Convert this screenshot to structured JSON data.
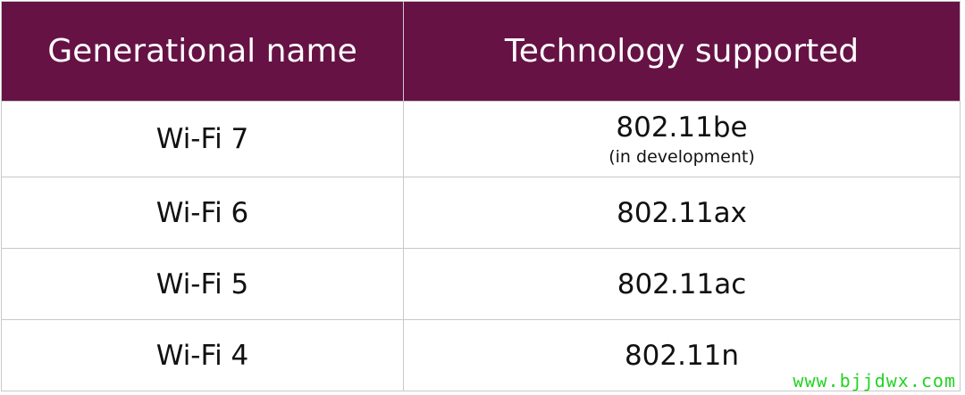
{
  "table": {
    "headers": [
      "Generational name",
      "Technology supported"
    ],
    "rows": [
      {
        "name": "Wi-Fi 7",
        "tech": "802.11be",
        "note": "(in development)"
      },
      {
        "name": "Wi-Fi 6",
        "tech": "802.11ax"
      },
      {
        "name": "Wi-Fi 5",
        "tech": "802.11ac"
      },
      {
        "name": "Wi-Fi 4",
        "tech": "802.11n"
      }
    ]
  },
  "watermark": "www.bjjdwx.com",
  "colors": {
    "header_background": "#661245",
    "header_text": "#ffffff",
    "grid": "#c9c9c9",
    "watermark": "#22d422"
  }
}
